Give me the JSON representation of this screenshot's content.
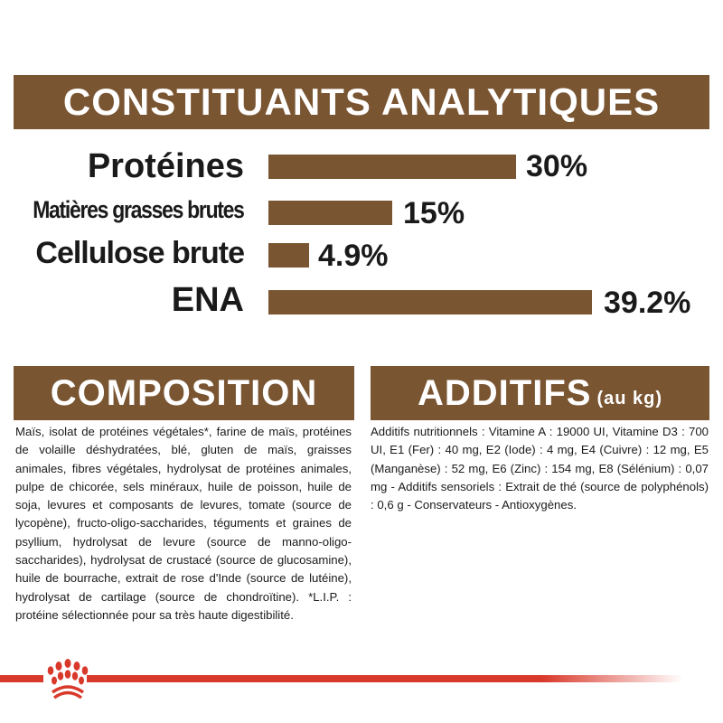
{
  "analytical": {
    "title": "CONSTITUANTS ANALYTIQUES",
    "rows": [
      {
        "label": "Protéines",
        "value": "30%"
      },
      {
        "label": "Matières grasses brutes",
        "value": "15%"
      },
      {
        "label": "Cellulose brute",
        "value": "4.9%"
      },
      {
        "label": "ENA",
        "value": "39.2%"
      }
    ]
  },
  "chart_data": {
    "type": "bar",
    "orientation": "horizontal",
    "categories": [
      "Protéines",
      "Matières grasses brutes",
      "Cellulose brute",
      "ENA"
    ],
    "values": [
      30,
      15,
      4.9,
      39.2
    ],
    "unit": "%",
    "bar_color": "#7a5532"
  },
  "composition": {
    "title": "COMPOSITION",
    "text": "Maïs, isolat de protéines végétales*, farine de maïs, protéines de volaille déshydratées, blé, gluten de maïs, graisses animales, fibres végétales, hydrolysat de protéines animales, pulpe de chicorée, sels minéraux, huile de poisson, huile de soja, levures et composants de levures, tomate (source de lycopène), fructo-oligo-saccharides, téguments et graines de psyllium, hydrolysat de levure (source de manno-oligo-saccharides), hydrolysat de crustacé (source de glucosamine), huile de bourrache, extrait de rose d'Inde (source de lutéine), hydrolysat de cartilage (source de chondroïtine). *L.I.P. : protéine sélectionnée pour sa très haute digestibilité."
  },
  "additifs": {
    "title": "ADDITIFS",
    "subtitle": "(au kg)",
    "text": "Additifs nutritionnels : Vitamine A : 19000 UI, Vitamine D3 : 700 UI, E1 (Fer) : 40 mg, E2 (Iode) : 4 mg, E4 (Cuivre) : 12 mg, E5 (Manganèse) : 52 mg, E6 (Zinc) : 154 mg, E8 (Sélénium) : 0,07 mg - Additifs sensoriels : Extrait de thé (source de polyphénols) : 0,6 g - Conservateurs - Antioxygènes."
  },
  "colors": {
    "brand_brown": "#7a5532",
    "brand_red": "#d9392b"
  },
  "footer": {
    "logo": "royal-crown-logo"
  }
}
